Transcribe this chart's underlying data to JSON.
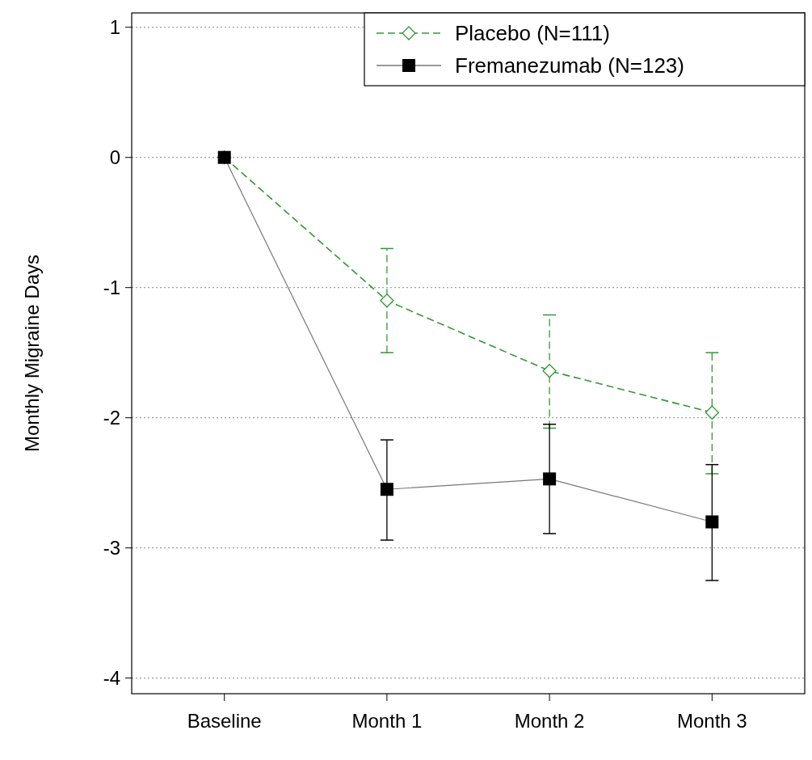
{
  "chart_data": {
    "type": "line",
    "ylabel": "Monthly Migraine Days",
    "categories": [
      "Baseline",
      "Month 1",
      "Month 2",
      "Month 3"
    ],
    "ylim": [
      -4.12,
      1.11
    ],
    "yticks": [
      1,
      0,
      -1,
      -2,
      -3,
      -4
    ],
    "grid": "y",
    "legend": "top right",
    "series": [
      {
        "name": "Placebo (N=111)",
        "color": "#339933",
        "marker": "diamond",
        "line_style": "dashed",
        "values": [
          0,
          -1.1,
          -1.64,
          -1.96
        ],
        "errors": [
          null,
          [
            -1.5,
            -0.7
          ],
          [
            -2.08,
            -1.21
          ],
          [
            -2.43,
            -1.5
          ]
        ]
      },
      {
        "name": "Fremanezumab (N=123)",
        "color": "#000000",
        "marker": "square",
        "line_style": "solid",
        "values": [
          0,
          -2.55,
          -2.47,
          -2.8
        ],
        "errors": [
          null,
          [
            -2.94,
            -2.17
          ],
          [
            -2.89,
            -2.05
          ],
          [
            -3.25,
            -2.36
          ]
        ]
      }
    ]
  }
}
